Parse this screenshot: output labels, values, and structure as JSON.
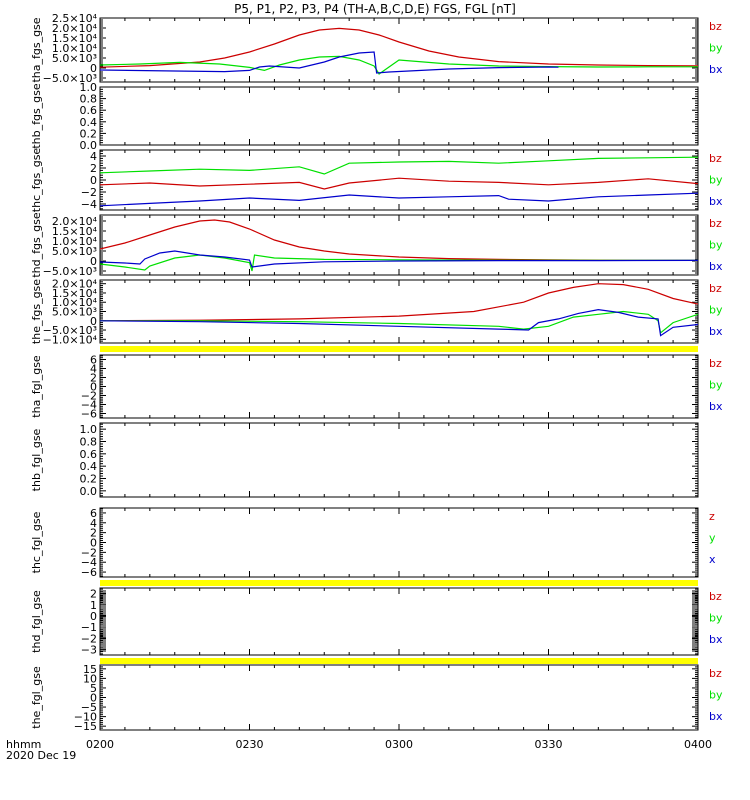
{
  "title": "P5, P1, P2, P3, P4 (TH-A,B,C,D,E) FGS, FGL [nT]",
  "time_axis": {
    "label_top": "hhmm",
    "label_bottom": "2020 Dec 19",
    "range": [
      "0200",
      "0400"
    ],
    "ticks": [
      "0200",
      "0230",
      "0300",
      "0330",
      "0400"
    ]
  },
  "colors": {
    "red": "#cc0000",
    "green": "#00e000",
    "blue": "#0000cc",
    "yellow": "#ffff00"
  },
  "chart_data": [
    {
      "type": "line",
      "ylabel": "tha_fgs_gse",
      "ylim": [
        -7000,
        25000
      ],
      "ticks": [
        {
          "v": 25000,
          "t": "2.5×10⁴"
        },
        {
          "v": 20000,
          "t": "2.0×10⁴"
        },
        {
          "v": 15000,
          "t": "1.5×10⁴"
        },
        {
          "v": 10000,
          "t": "1.0×10⁴"
        },
        {
          "v": 5000,
          "t": "5.0×10³"
        },
        {
          "v": 0,
          "t": "0"
        },
        {
          "v": -5000,
          "t": "−5.0×10³"
        }
      ],
      "legend": [
        "bz",
        "by",
        "bx"
      ],
      "series": [
        {
          "name": "bz",
          "color": "red",
          "x": [
            0,
            10,
            20,
            25,
            30,
            35,
            40,
            44,
            48,
            52,
            56,
            60,
            66,
            72,
            80,
            90,
            100,
            110,
            120
          ],
          "y": [
            400,
            1200,
            3000,
            5000,
            8000,
            12000,
            16500,
            19000,
            19800,
            19000,
            16500,
            13000,
            8500,
            5500,
            3200,
            2000,
            1500,
            1200,
            1100
          ]
        },
        {
          "name": "by",
          "color": "green",
          "x": [
            0,
            8,
            16,
            24,
            30,
            33,
            36,
            40,
            44,
            48,
            52,
            55,
            55.5,
            56,
            60,
            70,
            80,
            90,
            100,
            110,
            120
          ],
          "y": [
            1500,
            2000,
            2800,
            2000,
            300,
            -1200,
            1500,
            4000,
            5500,
            5800,
            4000,
            1000,
            -1000,
            -3000,
            4000,
            2000,
            1000,
            700,
            500,
            600,
            600
          ]
        },
        {
          "name": "bx",
          "color": "blue",
          "x": [
            0,
            15,
            25,
            30,
            32,
            34,
            40,
            45,
            48,
            52,
            55,
            55.5,
            58,
            70,
            80,
            90,
            92
          ],
          "y": [
            -1000,
            -1500,
            -1800,
            -1200,
            500,
            1000,
            0,
            3000,
            5500,
            7500,
            8000,
            -2500,
            -2000,
            -500,
            200,
            500,
            400
          ]
        }
      ]
    },
    {
      "type": "line",
      "ylabel": "thb_fgs_gse",
      "ylim": [
        0,
        1
      ],
      "ticks": [
        {
          "v": 1,
          "t": "1.0"
        },
        {
          "v": 0.8,
          "t": "0.8"
        },
        {
          "v": 0.6,
          "t": "0.6"
        },
        {
          "v": 0.4,
          "t": "0.4"
        },
        {
          "v": 0.2,
          "t": "0.2"
        },
        {
          "v": 0,
          "t": "0.0"
        }
      ],
      "legend": [],
      "series": []
    },
    {
      "type": "line",
      "ylabel": "thc_fgs_gse",
      "ylim": [
        -5,
        5
      ],
      "ticks": [
        {
          "v": 4,
          "t": "4"
        },
        {
          "v": 2,
          "t": "2"
        },
        {
          "v": 0,
          "t": "0"
        },
        {
          "v": -2,
          "t": "−2"
        },
        {
          "v": -4,
          "t": "−4"
        }
      ],
      "legend": [
        "bz",
        "by",
        "bx"
      ],
      "series": [
        {
          "name": "bz",
          "color": "red",
          "x": [
            0,
            10,
            20,
            30,
            40,
            45,
            50,
            60,
            70,
            80,
            90,
            100,
            110,
            120
          ],
          "y": [
            -0.8,
            -0.5,
            -1.0,
            -0.7,
            -0.4,
            -1.5,
            -0.5,
            0.3,
            -0.2,
            -0.4,
            -0.8,
            -0.4,
            0.2,
            -0.6
          ]
        },
        {
          "name": "by",
          "color": "green",
          "x": [
            0,
            10,
            20,
            30,
            40,
            45,
            50,
            60,
            70,
            80,
            90,
            100,
            110,
            120
          ],
          "y": [
            1.2,
            1.5,
            1.8,
            1.6,
            2.2,
            1.0,
            2.8,
            3.0,
            3.1,
            2.8,
            3.2,
            3.6,
            3.7,
            3.8
          ]
        },
        {
          "name": "bx",
          "color": "blue",
          "x": [
            0,
            10,
            20,
            30,
            40,
            50,
            60,
            70,
            80,
            82,
            90,
            100,
            110,
            120
          ],
          "y": [
            -4.3,
            -3.9,
            -3.5,
            -3.0,
            -3.4,
            -2.5,
            -3.0,
            -2.8,
            -2.6,
            -3.2,
            -3.5,
            -2.8,
            -2.5,
            -2.2
          ]
        }
      ]
    },
    {
      "type": "line",
      "ylabel": "thd_fgs_gse",
      "ylim": [
        -7000,
        23000
      ],
      "ticks": [
        {
          "v": 20000,
          "t": "2.0×10⁴"
        },
        {
          "v": 15000,
          "t": "1.5×10⁴"
        },
        {
          "v": 10000,
          "t": "1.0×10⁴"
        },
        {
          "v": 5000,
          "t": "5.0×10³"
        },
        {
          "v": 0,
          "t": "0"
        },
        {
          "v": -5000,
          "t": "−5.0×10³"
        }
      ],
      "legend": [
        "bz",
        "by",
        "bx"
      ],
      "series": [
        {
          "name": "bz",
          "color": "red",
          "x": [
            0,
            5,
            10,
            15,
            20,
            23,
            26,
            30,
            35,
            40,
            45,
            50,
            60,
            70,
            80,
            90,
            100,
            110,
            120
          ],
          "y": [
            6000,
            9000,
            13000,
            17000,
            20000,
            20500,
            19500,
            16000,
            10500,
            7000,
            5000,
            3500,
            2000,
            1200,
            800,
            600,
            400,
            300,
            300
          ]
        },
        {
          "name": "by",
          "color": "green",
          "x": [
            0,
            5,
            9,
            10,
            15,
            20,
            25,
            30,
            30.5,
            31,
            35,
            45,
            60,
            80,
            100,
            120
          ],
          "y": [
            -1500,
            -3000,
            -4500,
            -2500,
            1500,
            3000,
            1500,
            -800,
            -5000,
            3000,
            1500,
            800,
            600,
            400,
            300,
            300
          ]
        },
        {
          "name": "bx",
          "color": "blue",
          "x": [
            0,
            5,
            8,
            9,
            12,
            15,
            20,
            25,
            30,
            30.5,
            35,
            45,
            60,
            80,
            100,
            120
          ],
          "y": [
            -500,
            -1000,
            -1500,
            1000,
            4000,
            5000,
            3000,
            2000,
            500,
            -3000,
            -1500,
            -400,
            0,
            200,
            200,
            300
          ]
        }
      ]
    },
    {
      "type": "line",
      "ylabel": "the_fgs_gse",
      "ylim": [
        -12000,
        22000
      ],
      "ticks": [
        {
          "v": 20000,
          "t": "2.0×10⁴"
        },
        {
          "v": 15000,
          "t": "1.5×10⁴"
        },
        {
          "v": 10000,
          "t": "1.0×10⁴"
        },
        {
          "v": 5000,
          "t": "5.0×10³"
        },
        {
          "v": 0,
          "t": "0"
        },
        {
          "v": -5000,
          "t": "−5.0×10³"
        },
        {
          "v": -10000,
          "t": "−1.0×10⁴"
        }
      ],
      "legend": [
        "bz",
        "by",
        "bx"
      ],
      "series": [
        {
          "name": "bz",
          "color": "red",
          "x": [
            0,
            20,
            40,
            60,
            75,
            85,
            90,
            95,
            100,
            105,
            110,
            115,
            120
          ],
          "y": [
            0,
            300,
            1000,
            2500,
            5000,
            10000,
            15000,
            18000,
            20000,
            19500,
            17000,
            12000,
            9000
          ]
        },
        {
          "name": "by",
          "color": "green",
          "x": [
            0,
            20,
            40,
            60,
            80,
            85,
            90,
            95,
            100,
            105,
            110,
            112,
            112.5,
            115,
            120
          ],
          "y": [
            0,
            0,
            -500,
            -1500,
            -3000,
            -4500,
            -3000,
            2000,
            3500,
            5000,
            3500,
            0,
            -6500,
            -1000,
            3500
          ]
        },
        {
          "name": "bx",
          "color": "blue",
          "x": [
            0,
            20,
            40,
            60,
            80,
            86,
            88,
            92,
            96,
            100,
            104,
            108,
            112,
            112.5,
            115,
            120
          ],
          "y": [
            0,
            -500,
            -1500,
            -3000,
            -4500,
            -5000,
            -1000,
            1000,
            4000,
            6000,
            4500,
            2000,
            1000,
            -8000,
            -3500,
            -2000
          ]
        }
      ]
    },
    {
      "type": "line",
      "ylabel": "tha_fgl_gse",
      "ylim": [
        -7,
        7
      ],
      "ticks": [
        {
          "v": 6,
          "t": "6"
        },
        {
          "v": 4,
          "t": "4"
        },
        {
          "v": 2,
          "t": "2"
        },
        {
          "v": 0,
          "t": "0"
        },
        {
          "v": -2,
          "t": "−2"
        },
        {
          "v": -4,
          "t": "−4"
        },
        {
          "v": -6,
          "t": "−6"
        }
      ],
      "legend": [
        "bz",
        "by",
        "bx"
      ],
      "series": []
    },
    {
      "type": "line",
      "ylabel": "thb_fgl_gse",
      "ylim": [
        -0.1,
        1.1
      ],
      "ticks": [
        {
          "v": 1,
          "t": "1.0"
        },
        {
          "v": 0.8,
          "t": "0.8"
        },
        {
          "v": 0.6,
          "t": "0.6"
        },
        {
          "v": 0.4,
          "t": "0.4"
        },
        {
          "v": 0.2,
          "t": "0.2"
        },
        {
          "v": 0,
          "t": "0.0"
        }
      ],
      "legend": [],
      "series": []
    },
    {
      "type": "line",
      "ylabel": "thc_fgl_gse",
      "ylim": [
        -7,
        7
      ],
      "ticks": [
        {
          "v": 6,
          "t": "6"
        },
        {
          "v": 4,
          "t": "4"
        },
        {
          "v": 2,
          "t": "2"
        },
        {
          "v": 0,
          "t": "0"
        },
        {
          "v": -2,
          "t": "−2"
        },
        {
          "v": -4,
          "t": "−4"
        },
        {
          "v": -6,
          "t": "−6"
        }
      ],
      "legend": [
        "z",
        "y",
        "x"
      ],
      "series": []
    },
    {
      "type": "line",
      "ylabel": "thd_fgl_gse",
      "ylim": [
        -3.5,
        2.5
      ],
      "ticks": [
        {
          "v": 2,
          "t": "2"
        },
        {
          "v": 1,
          "t": "1"
        },
        {
          "v": 0,
          "t": "0"
        },
        {
          "v": -1,
          "t": "−1"
        },
        {
          "v": -2,
          "t": "−2"
        },
        {
          "v": -3,
          "t": "−3"
        }
      ],
      "legend": [
        "bz",
        "by",
        "bx"
      ],
      "series": []
    },
    {
      "type": "line",
      "ylabel": "the_fgl_gse",
      "ylim": [
        -17,
        17
      ],
      "ticks": [
        {
          "v": 15,
          "t": "15"
        },
        {
          "v": 10,
          "t": "10"
        },
        {
          "v": 5,
          "t": "5"
        },
        {
          "v": 0,
          "t": "0"
        },
        {
          "v": -5,
          "t": "−5"
        },
        {
          "v": -10,
          "t": "−10"
        },
        {
          "v": -15,
          "t": "−15"
        }
      ],
      "legend": [
        "bz",
        "by",
        "bx"
      ],
      "series": []
    }
  ]
}
